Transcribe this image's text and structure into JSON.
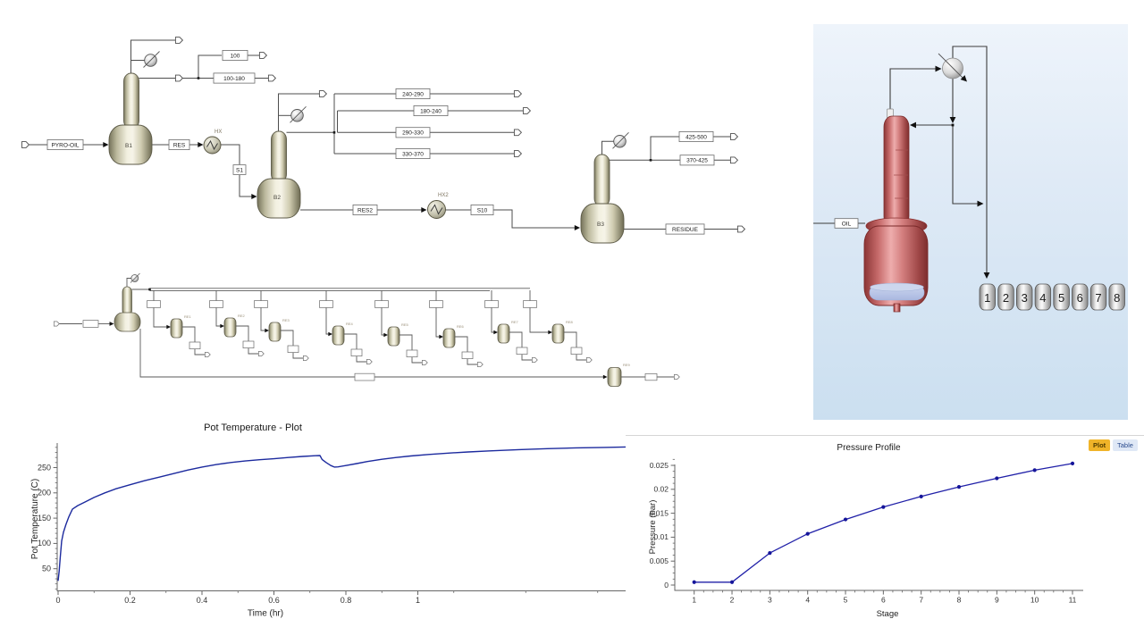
{
  "flowsheet1": {
    "units": {
      "b1": "B1",
      "b2": "B2",
      "b3": "B3",
      "hx": "HX",
      "hx2": "HX2"
    },
    "streams": {
      "feed": "PYRO-OIL",
      "res": "RES",
      "s1": "S1",
      "cut100": "100",
      "cut100_180": "100-180",
      "cut240_290": "240-290",
      "cut180_240": "180-240",
      "cut290_330": "290-330",
      "cut330_370": "330-370",
      "res2": "RES2",
      "s10": "S10",
      "cut425_500": "425-500",
      "cut370_425": "370-425",
      "residue": "RESIDUE"
    }
  },
  "flowsheet2": {
    "receiver_labels": [
      "RE1",
      "RE2",
      "RE3",
      "RE4",
      "RE5",
      "RE6",
      "RE7",
      "RE8",
      "RE9"
    ]
  },
  "panel3d": {
    "feed_label": "OIL",
    "receivers": [
      "1",
      "2",
      "3",
      "4",
      "5",
      "6",
      "7",
      "8"
    ]
  },
  "pressure_panel": {
    "tabs": {
      "plot": "Plot",
      "table": "Table"
    }
  },
  "chart_data": [
    {
      "type": "line",
      "title": "Pot Temperature - Plot",
      "xlabel": "Time (hr)",
      "ylabel": "Pot Temperature (C)",
      "xlim": [
        0,
        1.578
      ],
      "ylim": [
        5,
        297
      ],
      "grid": false,
      "legend": "none",
      "line_color": "#1c2a9e",
      "xticks": [
        0,
        0.2,
        0.4,
        0.6,
        0.8,
        1
      ],
      "xtick_labels": [
        "0",
        "0.2",
        "0.4",
        "0.6",
        "0.8",
        "1"
      ],
      "yticks": [
        50,
        100,
        150,
        200,
        250
      ],
      "ytick_labels": [
        "50",
        "100",
        "150",
        "200",
        "250"
      ],
      "x": [
        0,
        0.003,
        0.006,
        0.01,
        0.015,
        0.022,
        0.03,
        0.04,
        0.055,
        0.075,
        0.1,
        0.13,
        0.16,
        0.2,
        0.24,
        0.28,
        0.32,
        0.36,
        0.4,
        0.44,
        0.48,
        0.52,
        0.56,
        0.6,
        0.64,
        0.68,
        0.715,
        0.728,
        0.734,
        0.745,
        0.758,
        0.768,
        0.778,
        0.8,
        0.83,
        0.86,
        0.9,
        0.94,
        0.98,
        1.03,
        1.08,
        1.14,
        1.2,
        1.28,
        1.36,
        1.44,
        1.52,
        1.578
      ],
      "y": [
        26,
        45,
        72,
        105,
        122,
        138,
        153,
        168,
        175,
        182,
        191,
        200,
        208,
        216,
        224,
        231,
        238,
        245,
        251,
        256,
        260,
        263,
        265.5,
        267.5,
        270,
        272,
        273.5,
        273.8,
        266,
        260,
        254,
        251,
        251.5,
        254,
        258,
        262,
        266.5,
        270,
        273,
        276,
        278.5,
        281,
        283,
        285.5,
        287.5,
        289,
        290,
        290.8
      ]
    },
    {
      "type": "line",
      "title": "Pressure Profile",
      "xlabel": "Stage",
      "ylabel": "Pressure (bar)",
      "xlim": [
        1,
        11
      ],
      "ylim": [
        0,
        0.0265
      ],
      "grid": false,
      "legend": "none",
      "line_color": "#2020a8",
      "marker_color": "#15159a",
      "xticks": [
        1,
        2,
        3,
        4,
        5,
        6,
        7,
        8,
        9,
        10,
        11
      ],
      "xtick_labels": [
        "1",
        "2",
        "3",
        "4",
        "5",
        "6",
        "7",
        "8",
        "9",
        "10",
        "11"
      ],
      "yticks": [
        0,
        0.005,
        0.01,
        0.015,
        0.02,
        0.025
      ],
      "ytick_labels": [
        "0",
        "0.005",
        "0.01",
        "0.015",
        "0.02",
        "0.025"
      ],
      "x": [
        1,
        2,
        3,
        4,
        5,
        6,
        7,
        8,
        9,
        10,
        11
      ],
      "y": [
        0.0006,
        0.0006,
        0.0067,
        0.0107,
        0.0137,
        0.0163,
        0.0185,
        0.0205,
        0.0223,
        0.024,
        0.0254
      ]
    }
  ]
}
